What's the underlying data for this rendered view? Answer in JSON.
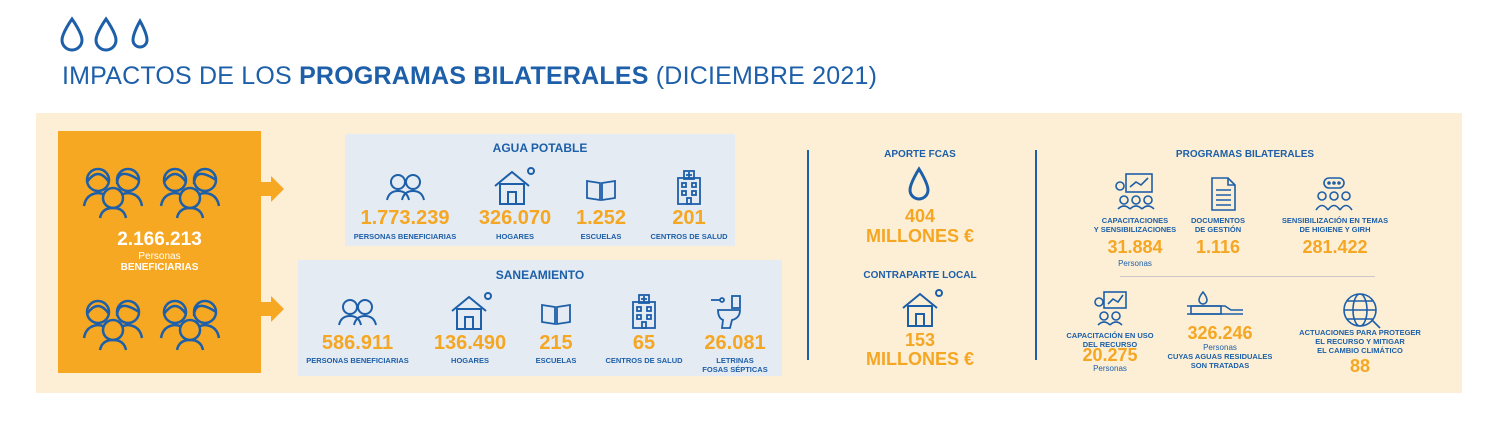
{
  "header": {
    "title_prefix": "IMPACTOS DE LOS ",
    "title_bold": "PROGRAMAS BILATERALES",
    "title_suffix": " (DICIEMBRE 2021)"
  },
  "beneficiarios": {
    "value": "2.166.213",
    "line1": "Personas",
    "line2": "BENEFICIARIAS"
  },
  "agua_potable": {
    "title": "AGUA POTABLE",
    "items": [
      {
        "value": "1.773.239",
        "label": "PERSONAS BENEFICIARIAS",
        "icon": "people-icon"
      },
      {
        "value": "326.070",
        "label": "HOGARES",
        "icon": "house-icon"
      },
      {
        "value": "1.252",
        "label": "ESCUELAS",
        "icon": "book-icon"
      },
      {
        "value": "201",
        "label": "CENTROS DE SALUD",
        "icon": "hospital-icon"
      }
    ]
  },
  "saneamiento": {
    "title": "SANEAMIENTO",
    "items": [
      {
        "value": "586.911",
        "label": "PERSONAS BENEFICIARIAS",
        "icon": "people-icon"
      },
      {
        "value": "136.490",
        "label": "HOGARES",
        "icon": "house-icon"
      },
      {
        "value": "215",
        "label": "ESCUELAS",
        "icon": "book-icon"
      },
      {
        "value": "65",
        "label": "CENTROS DE SALUD",
        "icon": "hospital-icon"
      },
      {
        "value": "26.081",
        "label": "LETRINAS",
        "label2": "FOSAS SÉPTICAS",
        "icon": "toilet-icon"
      }
    ]
  },
  "aporte": {
    "title": "APORTE FCAS",
    "value": "404",
    "unit": "MILLONES €"
  },
  "contraparte": {
    "title": "CONTRAPARTE LOCAL",
    "value": "153",
    "unit": "MILLONES €"
  },
  "programas": {
    "title": "PROGRAMAS BILATERALES",
    "capacitaciones": {
      "label1": "CAPACITACIONES",
      "label2": "Y SENSIBILIZACIONES",
      "value": "31.884",
      "sub": "Personas"
    },
    "documentos": {
      "label1": "DOCUMENTOS",
      "label2": "DE GESTIÓN",
      "value": "1.116"
    },
    "sensibilizacion": {
      "label1": "SENSIBILIZACIÓN EN TEMAS",
      "label2": "DE HIGIENE Y GIRH",
      "value": "281.422"
    },
    "capacitacion_uso": {
      "label1": "CAPACITACIÓN EN USO",
      "label2": "DEL RECURSO",
      "value": "20.275",
      "sub": "Personas"
    },
    "aguas_residuales": {
      "value": "326.246",
      "sub": "Personas",
      "label1": "CUYAS AGUAS RESIDUALES",
      "label2": "SON TRATADAS"
    },
    "actuaciones": {
      "label1": "ACTUACIONES PARA PROTEGER",
      "label2": "EL RECURSO Y MITIGAR",
      "label3": "EL CAMBIO CLIMÁTICO",
      "value": "88"
    }
  },
  "colors": {
    "blue": "#1d5fa8",
    "orange": "#f5a623",
    "panel": "#fdefd6",
    "section": "#e4ebf3"
  }
}
